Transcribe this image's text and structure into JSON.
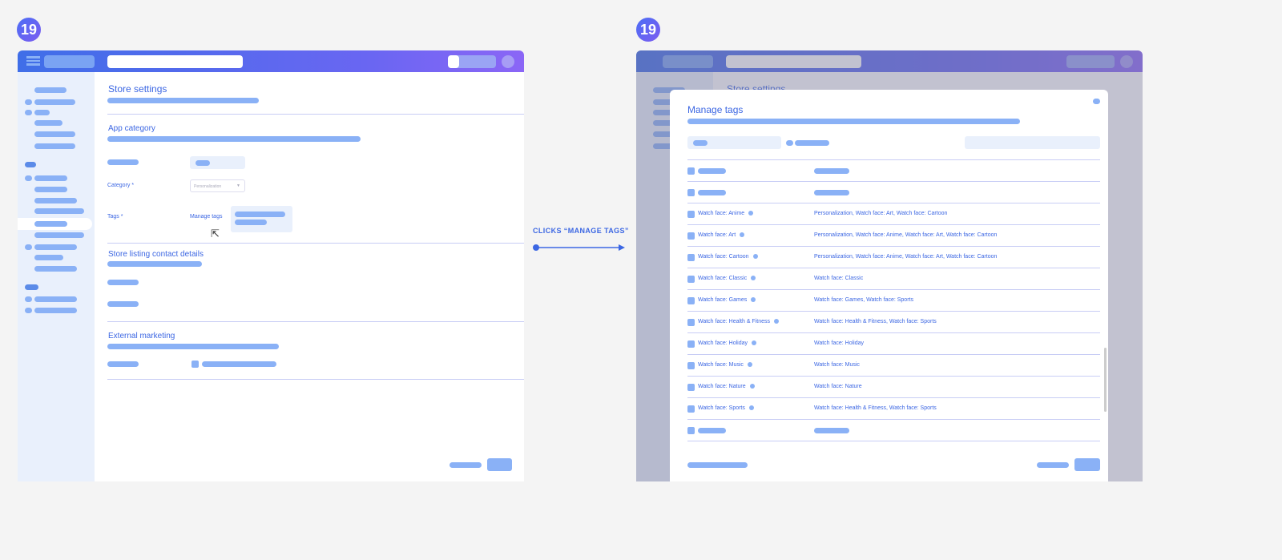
{
  "step_number": "19",
  "before": {
    "page_title": "Store settings",
    "sections": {
      "app_category": "App category",
      "contact": "Store listing contact details",
      "external": "External marketing"
    },
    "category_label": "Category *",
    "category_value": "Personalization",
    "tags_label": "Tags *",
    "manage_tags_link": "Manage tags"
  },
  "action": {
    "label": "CLICKS “MANAGE TAGS”"
  },
  "after": {
    "page_title": "Store settings",
    "modal": {
      "title": "Manage tags",
      "rows": [
        {
          "tag": "Watch face: Anime",
          "categories": "Personalization, Watch face: Art, Watch face: Cartoon"
        },
        {
          "tag": "Watch face: Art",
          "categories": "Personalization, Watch face: Anime, Watch face: Art, Watch face: Cartoon"
        },
        {
          "tag": "Watch face: Cartoon",
          "categories": "Personalization, Watch face: Anime, Watch face: Art, Watch face: Cartoon"
        },
        {
          "tag": "Watch face: Classic",
          "categories": "Watch face: Classic"
        },
        {
          "tag": "Watch face: Games",
          "categories": "Watch face: Games, Watch face: Sports"
        },
        {
          "tag": "Watch face: Health & Fitness",
          "categories": "Watch face: Health & Fitness, Watch face: Sports"
        },
        {
          "tag": "Watch face: Holiday",
          "categories": "Watch face: Holiday"
        },
        {
          "tag": "Watch face: Music",
          "categories": "Watch face: Music"
        },
        {
          "tag": "Watch face: Nature",
          "categories": "Watch face: Nature"
        },
        {
          "tag": "Watch face: Sports",
          "categories": "Watch face: Health & Fitness, Watch face: Sports"
        }
      ]
    }
  },
  "colors": {
    "accent": "#3c67e3",
    "placeholder": "#8ab1f6",
    "header_start": "#3f6ee8",
    "header_end": "#8b66f6"
  }
}
